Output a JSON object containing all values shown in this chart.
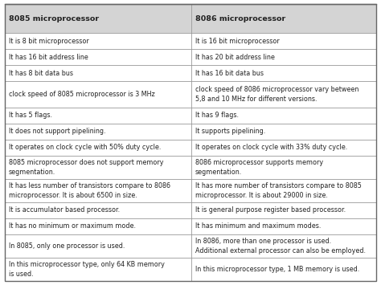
{
  "col1_header": "8085 microprocessor",
  "col2_header": "8086 microprocessor",
  "rows": [
    [
      "It is 8 bit microprocessor",
      "It is 16 bit microprocessor"
    ],
    [
      "It has 16 bit address line",
      "It has 20 bit address line"
    ],
    [
      "It has 8 bit data bus",
      "It has 16 bit data bus"
    ],
    [
      "clock speed of 8085 microprocessor is 3 MHz",
      "clock speed of 8086 microprocessor vary between\n5,8 and 10 MHz for different versions."
    ],
    [
      "It has 5 flags.",
      "It has 9 flags."
    ],
    [
      "It does not support pipelining.",
      "It supports pipelining."
    ],
    [
      "It operates on clock cycle with 50% duty cycle.",
      "It operates on clock cycle with 33% duty cycle."
    ],
    [
      "8085 microprocessor does not support memory\nsegmentation.",
      "8086 microprocessor supports memory\nsegmentation."
    ],
    [
      "It has less number of transistors compare to 8086\nmicroprocessor. It is about 6500 in size.",
      "It has more number of transistors compare to 8085\nmicroprocessor. It is about 29000 in size."
    ],
    [
      "It is accumulator based processor.",
      "It is general purpose register based processor."
    ],
    [
      "It has no minimum or maximum mode.",
      "It has minimum and maximum modes."
    ],
    [
      "In 8085, only one processor is used.",
      "In 8086, more than one processor is used.\nAdditional external processor can also be employed."
    ],
    [
      "In this microprocessor type, only 64 KB memory\nis used.",
      "In this microprocessor type, 1 MB memory is used."
    ]
  ],
  "header_bg": "#d4d4d4",
  "cell_bg": "#ffffff",
  "border_color": "#999999",
  "outer_border_color": "#666666",
  "header_font_size": 6.8,
  "cell_font_size": 5.8,
  "text_color": "#222222",
  "col_split": 0.502,
  "row_heights": [
    1.8,
    1.0,
    1.0,
    1.0,
    1.65,
    1.0,
    1.0,
    1.0,
    1.45,
    1.45,
    1.0,
    1.0,
    1.45,
    1.45
  ]
}
